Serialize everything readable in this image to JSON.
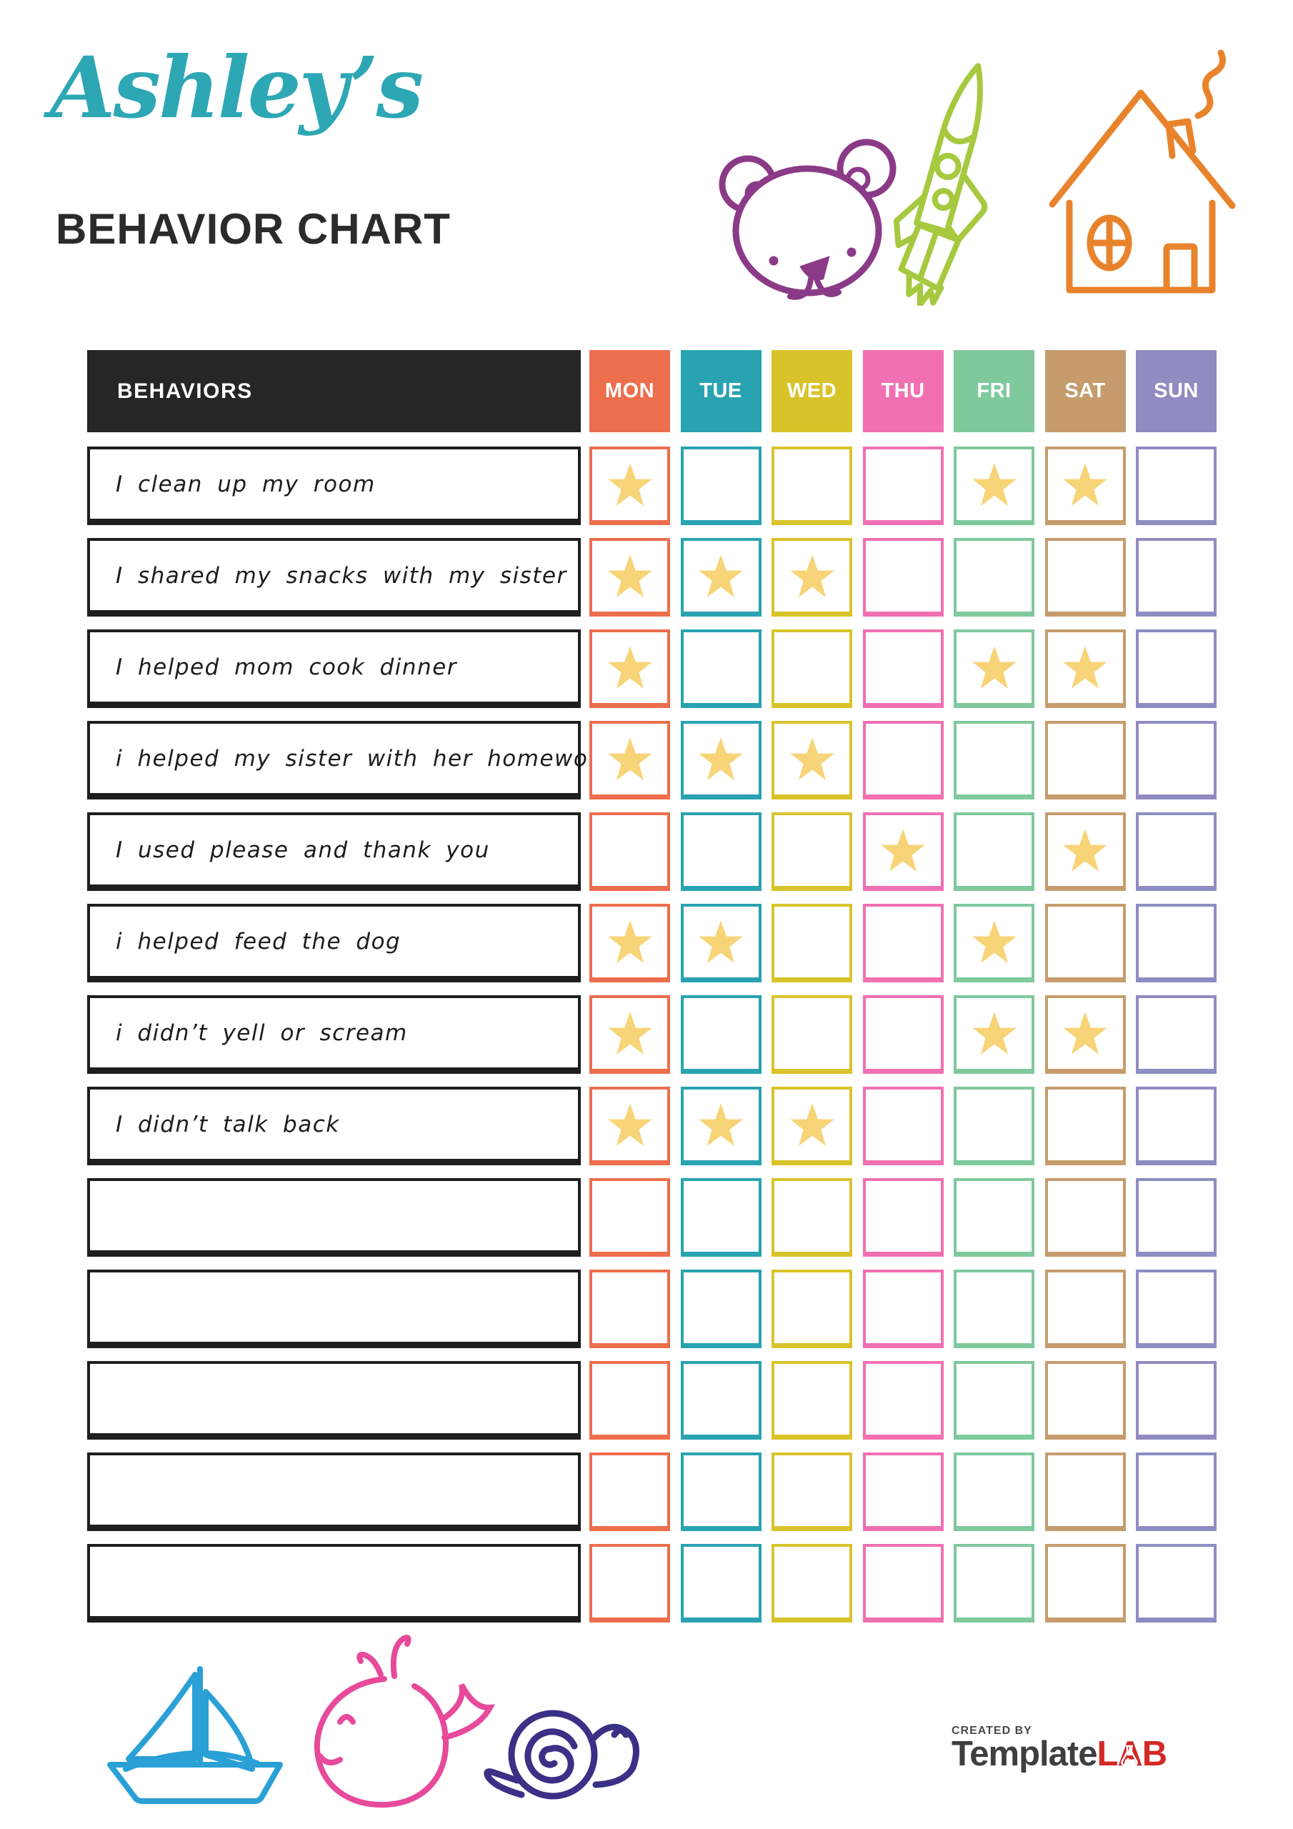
{
  "header": {
    "script_title": "Ashley’s",
    "main_title": "BEHAVIOR CHART"
  },
  "colors": {
    "script_title": "#2EA7B5",
    "main_title": "#2B2B2B",
    "behaviors_header_bg": "#262626",
    "star": "#F8D478",
    "bear": "#8B3A87",
    "rocket": "#A6C93F",
    "house": "#E8832C",
    "sailboat": "#2AA0D6",
    "whale": "#E74A9B",
    "snail": "#3A3085"
  },
  "table": {
    "behaviors_header": "BEHAVIORS",
    "days": [
      {
        "label": "MON",
        "color": "#ED6E4D"
      },
      {
        "label": "TUE",
        "color": "#29A3B1"
      },
      {
        "label": "WED",
        "color": "#D9C32B"
      },
      {
        "label": "THU",
        "color": "#F170B1"
      },
      {
        "label": "FRI",
        "color": "#7FC99C"
      },
      {
        "label": "SAT",
        "color": "#C69C6D"
      },
      {
        "label": "SUN",
        "color": "#8F8CC2"
      }
    ],
    "rows": [
      {
        "label": "I clean up my room",
        "starred_days": [
          "MON",
          "FRI",
          "SAT"
        ]
      },
      {
        "label": "I shared my snacks with my sister",
        "starred_days": [
          "MON",
          "TUE",
          "WED"
        ]
      },
      {
        "label": "I helped mom cook dinner",
        "starred_days": [
          "MON",
          "FRI",
          "SAT"
        ]
      },
      {
        "label": "i helped my sister with her homework",
        "starred_days": [
          "MON",
          "TUE",
          "WED"
        ]
      },
      {
        "label": "I used please and thank you",
        "starred_days": [
          "THU",
          "SAT"
        ]
      },
      {
        "label": "i helped feed the dog",
        "starred_days": [
          "MON",
          "TUE",
          "FRI"
        ]
      },
      {
        "label": "i didn’t yell or scream",
        "starred_days": [
          "MON",
          "FRI",
          "SAT"
        ]
      },
      {
        "label": "I didn’t talk back",
        "starred_days": [
          "MON",
          "TUE",
          "WED"
        ]
      },
      {
        "label": "",
        "starred_days": []
      },
      {
        "label": "",
        "starred_days": []
      },
      {
        "label": "",
        "starred_days": []
      },
      {
        "label": "",
        "starred_days": []
      },
      {
        "label": "",
        "starred_days": []
      }
    ]
  },
  "footer": {
    "created_by": "CREATED BY",
    "brand_name": "Template",
    "brand_suffix": "LAB"
  }
}
